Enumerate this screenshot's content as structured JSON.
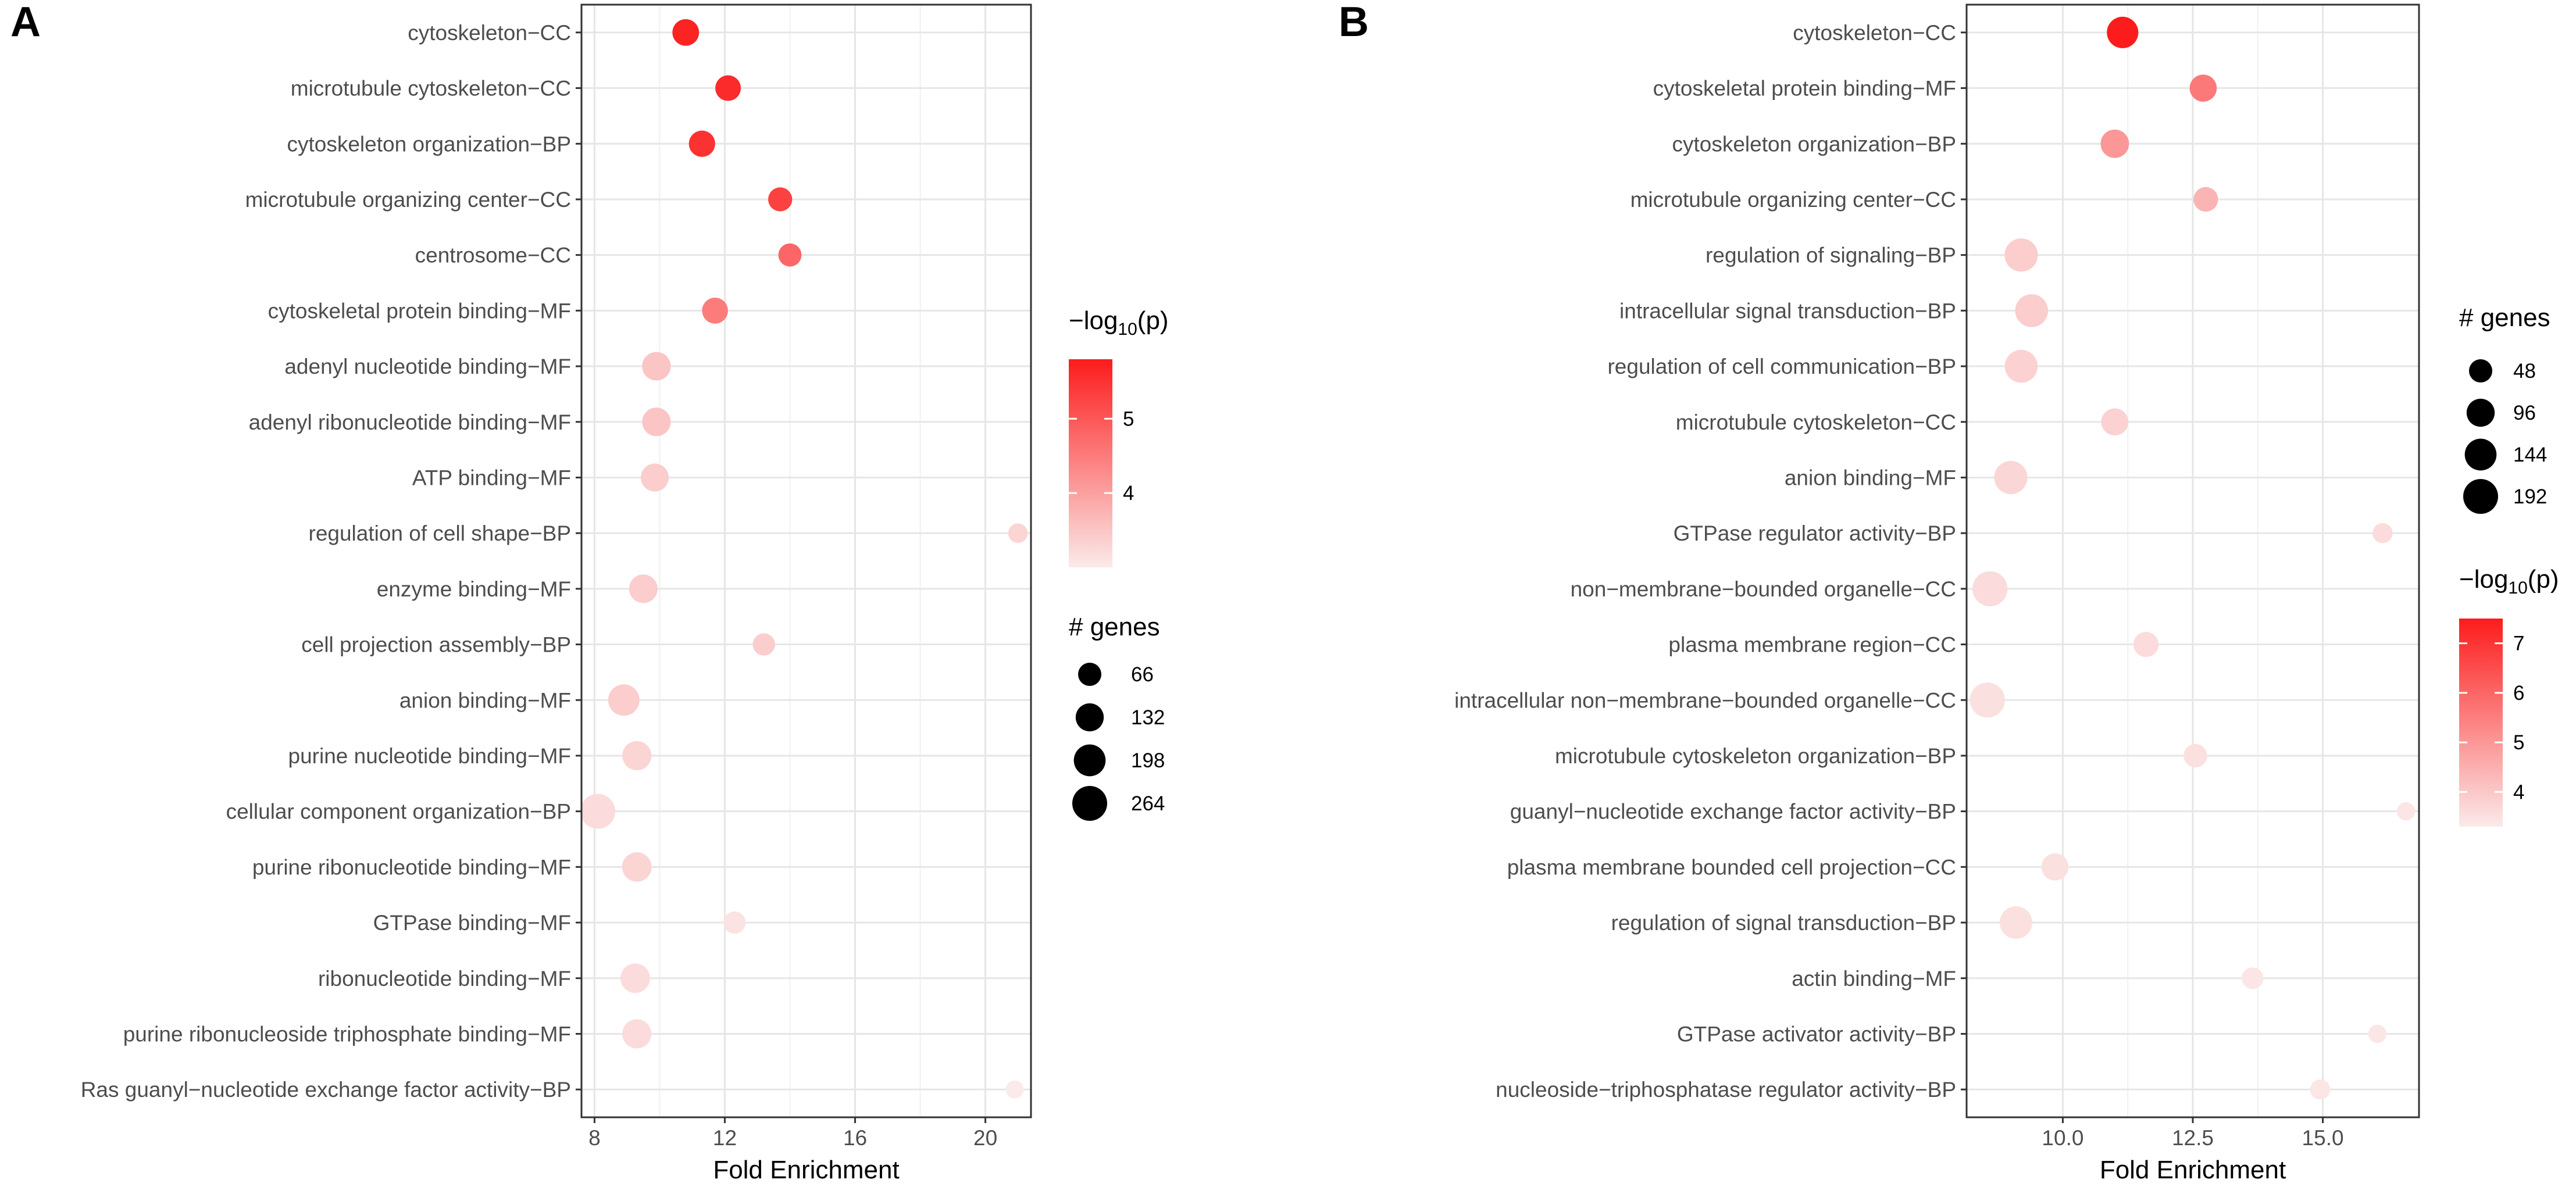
{
  "panels": [
    {
      "chart_data": {
        "type": "scatter",
        "panel_label": "A",
        "xlabel": "Fold Enrichment",
        "ylabel": "",
        "xlim": [
          7.6,
          21.4
        ],
        "xticks": [
          8,
          12,
          16,
          20
        ],
        "xtick_labels": [
          "8",
          "12",
          "16",
          "20"
        ],
        "size_legend": {
          "title": "# genes",
          "values": [
            66,
            132,
            198,
            264
          ],
          "labels": [
            "66",
            "132",
            "198",
            "264"
          ]
        },
        "color_legend": {
          "title_prefix": "−log",
          "title_sub": "10",
          "title_suffix": "(p)",
          "min": 3.0,
          "max": 5.8,
          "ticks": [
            4,
            5
          ],
          "tick_labels": [
            "4",
            "5"
          ],
          "low_color": "#fbeaea",
          "high_color": "#fc1c1c"
        },
        "terms": [
          "cytoskeleton−CC",
          "microtubule cytoskeleton−CC",
          "cytoskeleton organization−BP",
          "microtubule organizing center−CC",
          "centrosome−CC",
          "cytoskeletal protein binding−MF",
          "adenyl nucleotide binding−MF",
          "adenyl ribonucleotide binding−MF",
          "ATP binding−MF",
          "regulation of cell shape−BP",
          "enzyme binding−MF",
          "cell projection assembly−BP",
          "anion binding−MF",
          "purine nucleotide binding−MF",
          "cellular component organization−BP",
          "purine ribonucleotide binding−MF",
          "GTPase binding−MF",
          "ribonucleotide binding−MF",
          "purine ribonucleoside triphosphate binding−MF",
          "Ras guanyl−nucleotide exchange factor activity−BP"
        ],
        "fold_enrichment": [
          10.8,
          12.1,
          11.3,
          13.7,
          14.0,
          11.7,
          9.9,
          9.9,
          9.85,
          21.0,
          9.5,
          13.2,
          8.9,
          9.3,
          8.1,
          9.3,
          12.3,
          9.25,
          9.3,
          20.9
        ],
        "neg_log10_p": [
          5.7,
          5.6,
          5.5,
          5.3,
          4.8,
          4.5,
          3.5,
          3.5,
          3.4,
          3.3,
          3.4,
          3.4,
          3.4,
          3.3,
          3.2,
          3.3,
          3.1,
          3.2,
          3.2,
          3.0
        ],
        "genes": [
          110,
          95,
          105,
          75,
          65,
          100,
          140,
          140,
          130,
          30,
          140,
          55,
          190,
          150,
          264,
          155,
          55,
          155,
          150,
          20
        ]
      }
    },
    {
      "chart_data": {
        "type": "scatter",
        "panel_label": "B",
        "xlabel": "Fold Enrichment",
        "ylabel": "",
        "xlim": [
          8.15,
          16.85
        ],
        "xticks": [
          10.0,
          12.5,
          15.0
        ],
        "xtick_labels": [
          "10.0",
          "12.5",
          "15.0"
        ],
        "size_legend": {
          "title": "# genes",
          "values": [
            48,
            96,
            144,
            192
          ],
          "labels": [
            "48",
            "96",
            "144",
            "192"
          ]
        },
        "color_legend": {
          "title_prefix": "−log",
          "title_sub": "10",
          "title_suffix": "(p)",
          "min": 3.3,
          "max": 7.5,
          "ticks": [
            4,
            5,
            6,
            7
          ],
          "tick_labels": [
            "4",
            "5",
            "6",
            "7"
          ],
          "low_color": "#fbeaea",
          "high_color": "#fc1c1c"
        },
        "terms": [
          "cytoskeleton−CC",
          "cytoskeletal protein binding−MF",
          "cytoskeleton organization−BP",
          "microtubule organizing center−CC",
          "regulation of signaling−BP",
          "intracellular signal transduction−BP",
          "regulation of cell communication−BP",
          "microtubule cytoskeleton−CC",
          "anion binding−MF",
          "GTPase regulator activity−BP",
          "non−membrane−bounded organelle−CC",
          "plasma membrane region−CC",
          "intracellular non−membrane−bounded organelle−CC",
          "microtubule cytoskeleton organization−BP",
          "guanyl−nucleotide exchange factor activity−BP",
          "plasma membrane bounded cell projection−CC",
          "regulation of signal transduction−BP",
          "actin binding−MF",
          "GTPase activator activity−BP",
          "nucleoside−triphosphatase regulator activity−BP"
        ],
        "fold_enrichment": [
          11.15,
          12.7,
          11.0,
          12.75,
          9.2,
          9.4,
          9.2,
          11.0,
          9.0,
          16.15,
          8.6,
          11.6,
          8.55,
          12.55,
          16.6,
          9.85,
          9.1,
          13.65,
          16.05,
          14.95
        ],
        "neg_log10_p": [
          7.5,
          5.6,
          5.0,
          4.4,
          3.9,
          3.9,
          3.8,
          3.8,
          3.7,
          3.6,
          3.6,
          3.6,
          3.5,
          3.5,
          3.4,
          3.5,
          3.5,
          3.4,
          3.4,
          3.4
        ],
        "genes": [
          140,
          85,
          100,
          60,
          165,
          160,
          160,
          85,
          165,
          25,
          195,
          65,
          195,
          50,
          15,
          85,
          155,
          35,
          15,
          25
        ]
      }
    }
  ]
}
